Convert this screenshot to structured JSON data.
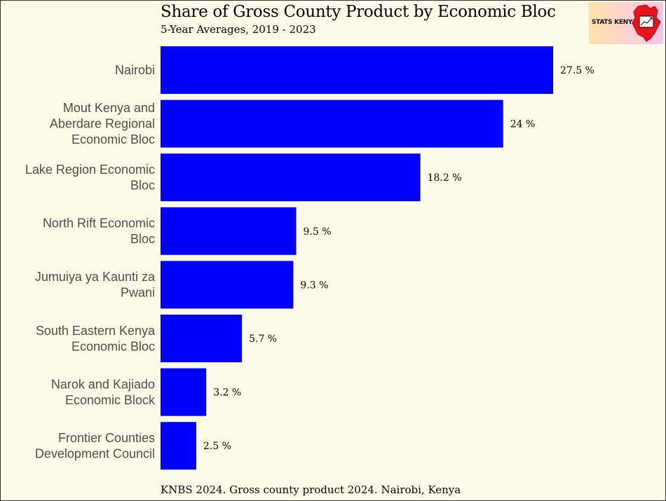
{
  "chart_data": {
    "type": "bar",
    "orientation": "horizontal",
    "title": "Share of Gross County Product by Economic Bloc",
    "subtitle": "5-Year Averages, 2019 - 2023",
    "caption": "KNBS 2024. Gross county product 2024. Nairobi, Kenya",
    "categories": [
      "Nairobi",
      "Mout Kenya and Aberdare Regional Economic Bloc",
      "Lake Region Economic Bloc",
      "North Rift Economic Bloc",
      "Jumuiya ya Kaunti za Pwani",
      "South Eastern Kenya Economic Bloc",
      "Narok and Kajiado Economic Block",
      "Frontier Counties Development Council"
    ],
    "category_lines": [
      [
        "Nairobi"
      ],
      [
        "Mout Kenya and",
        "Aberdare Regional",
        "Economic Bloc"
      ],
      [
        "Lake Region Economic",
        "Bloc"
      ],
      [
        "North Rift Economic",
        "Bloc"
      ],
      [
        "Jumuiya ya Kaunti za",
        "Pwani"
      ],
      [
        "South Eastern Kenya",
        "Economic Bloc"
      ],
      [
        "Narok and Kajiado",
        "Economic Block"
      ],
      [
        "Frontier Counties",
        "Development Council"
      ]
    ],
    "values": [
      27.5,
      24,
      18.2,
      9.5,
      9.3,
      5.7,
      3.2,
      2.5
    ],
    "value_labels": [
      "27.5 %",
      "24 %",
      "18.2 %",
      "9.5 %",
      "9.3 %",
      "5.7 %",
      "3.2 %",
      "2.5 %"
    ],
    "xlim": [
      0,
      27.5
    ],
    "grid": false,
    "legend": "none",
    "bar_color": "#0000ff",
    "background_color": "#fffbe9"
  },
  "logo": {
    "text": "STATS KENYA",
    "map_color": "#e8141c"
  }
}
